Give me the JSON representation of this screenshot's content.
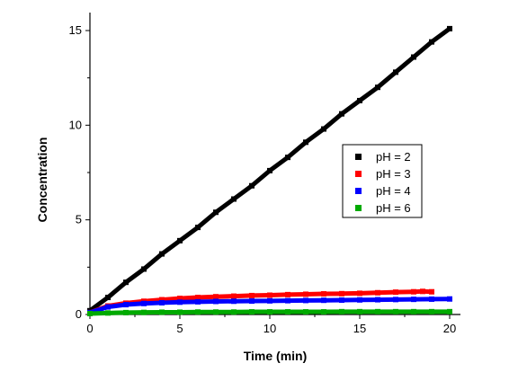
{
  "chart_data": {
    "type": "scatter",
    "title": "",
    "xlabel": "Time (min)",
    "ylabel": "Concentration",
    "xlim": [
      0,
      20
    ],
    "ylim": [
      0,
      16
    ],
    "x_ticks": [
      0,
      5,
      10,
      15,
      20
    ],
    "y_ticks": [
      0,
      5,
      10,
      15
    ],
    "grid": false,
    "legend_position": "right-middle",
    "series": [
      {
        "name": "pH = 2",
        "color": "#000000",
        "x": [
          0,
          1,
          2,
          3,
          4,
          5,
          6,
          7,
          8,
          9,
          10,
          11,
          12,
          13,
          14,
          15,
          16,
          17,
          18,
          19,
          20
        ],
        "y": [
          0.2,
          0.9,
          1.7,
          2.4,
          3.2,
          3.9,
          4.6,
          5.4,
          6.1,
          6.8,
          7.6,
          8.3,
          9.1,
          9.8,
          10.6,
          11.3,
          12.0,
          12.8,
          13.6,
          14.4,
          15.1
        ]
      },
      {
        "name": "pH = 3",
        "color": "#ff0000",
        "x": [
          0,
          1,
          2,
          3,
          4,
          5,
          6,
          7,
          8,
          9,
          10,
          11,
          12,
          13,
          14,
          15,
          16,
          17,
          18,
          18.5,
          19
        ],
        "y": [
          0.1,
          0.45,
          0.6,
          0.7,
          0.78,
          0.85,
          0.9,
          0.94,
          0.97,
          1.0,
          1.02,
          1.05,
          1.07,
          1.09,
          1.1,
          1.12,
          1.15,
          1.18,
          1.2,
          1.22,
          1.2
        ]
      },
      {
        "name": "pH = 4",
        "color": "#0000ff",
        "x": [
          0,
          1,
          2,
          3,
          4,
          5,
          6,
          7,
          8,
          9,
          10,
          11,
          12,
          13,
          14,
          15,
          16,
          17,
          18,
          19,
          20
        ],
        "y": [
          0.1,
          0.4,
          0.52,
          0.58,
          0.62,
          0.65,
          0.67,
          0.69,
          0.7,
          0.71,
          0.72,
          0.73,
          0.74,
          0.75,
          0.76,
          0.77,
          0.78,
          0.79,
          0.8,
          0.81,
          0.82
        ]
      },
      {
        "name": "pH = 6",
        "color": "#00aa00",
        "x": [
          0,
          1,
          2,
          3,
          4,
          5,
          6,
          7,
          8,
          9,
          10,
          11,
          12,
          13,
          14,
          15,
          16,
          17,
          18,
          19,
          20
        ],
        "y": [
          0.05,
          0.08,
          0.1,
          0.11,
          0.12,
          0.12,
          0.13,
          0.13,
          0.13,
          0.14,
          0.14,
          0.14,
          0.14,
          0.14,
          0.15,
          0.15,
          0.15,
          0.15,
          0.15,
          0.15,
          0.15
        ]
      }
    ]
  }
}
